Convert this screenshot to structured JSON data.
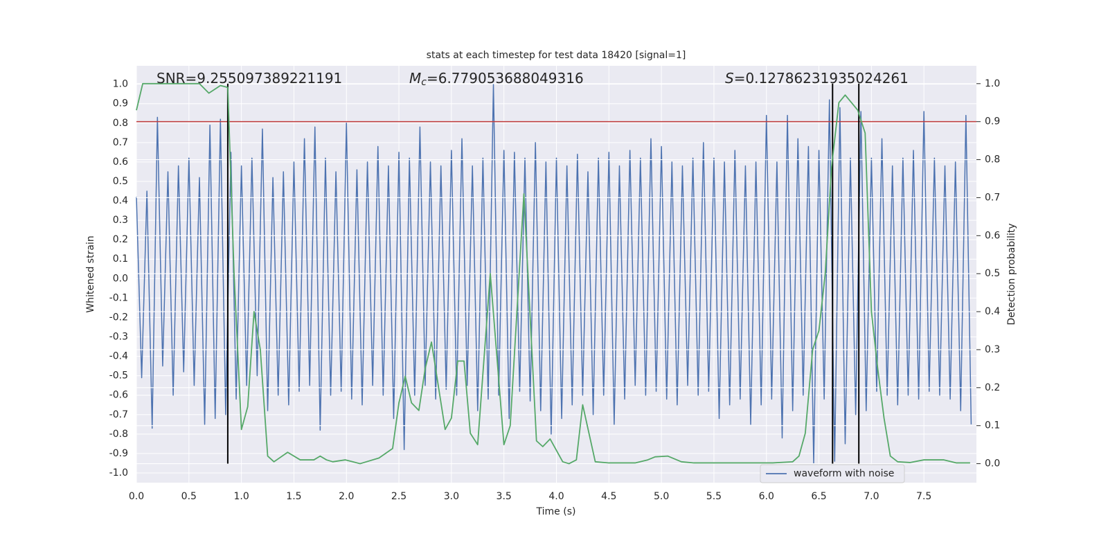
{
  "chart_data": {
    "type": "line",
    "title": "stats at each timestep for test data 18420 [signal=1]",
    "xlabel": "Time (s)",
    "ylabel": "Whitened strain",
    "y2label": "Detection probability",
    "annotations": [
      {
        "text": "SNR=9.255097389221191"
      },
      {
        "symbol": "M",
        "subscript": "c",
        "text": "=6.779053688049316"
      },
      {
        "symbol": "S",
        "text": "=0.12786231935024261"
      }
    ],
    "xlim": [
      0,
      8
    ],
    "ylim": [
      -1.05,
      1.095
    ],
    "y2lim": [
      -0.05,
      1.047
    ],
    "xticks": [
      {
        "value": 0,
        "label": "0.0"
      },
      0.5,
      {
        "value": 1,
        "label": "1.0"
      },
      1.5,
      {
        "value": 2,
        "label": "2.0"
      },
      2.5,
      {
        "value": 3,
        "label": "3.0"
      },
      3.5,
      {
        "value": 4,
        "label": "4.0"
      },
      4.5,
      {
        "value": 5,
        "label": "5.0"
      },
      5.5,
      {
        "value": 6,
        "label": "6.0"
      },
      6.5,
      {
        "value": 7,
        "label": "7.0"
      },
      7.5
    ],
    "yticks": [
      {
        "value": -1,
        "label": "-1.0"
      },
      -0.9,
      -0.8,
      -0.7,
      -0.6,
      -0.5,
      -0.4,
      -0.3,
      -0.2,
      -0.1,
      {
        "value": 0,
        "label": "0.0"
      },
      0.1,
      0.2,
      0.3,
      0.4,
      0.5,
      0.6,
      0.7,
      0.8,
      0.9,
      {
        "value": 1,
        "label": "1.0"
      }
    ],
    "y2ticks": [
      {
        "value": 0,
        "label": "0.0"
      },
      0.1,
      0.2,
      0.3,
      0.4,
      0.5,
      0.6,
      0.7,
      0.8,
      0.9,
      {
        "value": 1,
        "label": "1.0"
      }
    ],
    "grid": true,
    "legend": "lower right",
    "threshold": 0.9,
    "threshold_color": "#c03a3a",
    "vlines": [
      0.87,
      6.63,
      6.88
    ],
    "vline_span": [
      0,
      1
    ],
    "vline_color": "#000000",
    "series": [
      {
        "name": "waveform with noise",
        "color": "#4c72b0",
        "x": [
          0,
          0.05,
          0.1,
          0.15,
          0.2,
          0.25,
          0.3,
          0.35,
          0.4,
          0.45,
          0.5,
          0.55,
          0.6,
          0.65,
          0.7,
          0.75,
          0.8,
          0.85,
          0.9,
          0.95,
          1,
          1.05,
          1.1,
          1.15,
          1.2,
          1.25,
          1.3,
          1.35,
          1.4,
          1.45,
          1.5,
          1.55,
          1.6,
          1.65,
          1.7,
          1.75,
          1.8,
          1.85,
          1.9,
          1.95,
          2,
          2.05,
          2.1,
          2.15,
          2.2,
          2.25,
          2.3,
          2.35,
          2.4,
          2.45,
          2.5,
          2.55,
          2.6,
          2.65,
          2.7,
          2.75,
          2.8,
          2.85,
          2.9,
          2.95,
          3,
          3.05,
          3.1,
          3.15,
          3.2,
          3.25,
          3.3,
          3.35,
          3.4,
          3.45,
          3.5,
          3.55,
          3.6,
          3.65,
          3.7,
          3.75,
          3.8,
          3.85,
          3.9,
          3.95,
          4,
          4.05,
          4.1,
          4.15,
          4.2,
          4.25,
          4.3,
          4.35,
          4.4,
          4.45,
          4.5,
          4.55,
          4.6,
          4.65,
          4.7,
          4.75,
          4.8,
          4.85,
          4.9,
          4.95,
          5,
          5.05,
          5.1,
          5.15,
          5.2,
          5.25,
          5.3,
          5.35,
          5.4,
          5.45,
          5.5,
          5.55,
          5.6,
          5.65,
          5.7,
          5.75,
          5.8,
          5.85,
          5.9,
          5.95,
          6,
          6.05,
          6.1,
          6.15,
          6.2,
          6.25,
          6.3,
          6.35,
          6.4,
          6.45,
          6.5,
          6.55,
          6.6,
          6.65,
          6.7,
          6.75,
          6.8,
          6.85,
          6.9,
          6.95,
          7,
          7.05,
          7.1,
          7.15,
          7.2,
          7.25,
          7.3,
          7.35,
          7.4,
          7.45,
          7.5,
          7.55,
          7.6,
          7.65,
          7.7,
          7.75,
          7.8,
          7.85,
          7.9,
          7.95
        ],
        "values": [
          0.42,
          -0.51,
          0.45,
          -0.77,
          0.83,
          -0.45,
          0.55,
          -0.6,
          0.58,
          -0.48,
          0.62,
          -0.55,
          0.52,
          -0.75,
          0.79,
          -0.72,
          0.82,
          -0.7,
          0.65,
          -0.62,
          0.58,
          -0.55,
          0.62,
          -0.5,
          0.77,
          -0.68,
          0.52,
          -0.6,
          0.55,
          -0.65,
          0.6,
          -0.58,
          0.72,
          -0.55,
          0.78,
          -0.78,
          0.62,
          -0.6,
          0.55,
          -0.58,
          0.8,
          -0.62,
          0.56,
          -0.65,
          0.6,
          -0.55,
          0.68,
          -0.6,
          0.58,
          -0.72,
          0.65,
          -0.88,
          0.62,
          -0.6,
          0.78,
          -0.55,
          0.6,
          -0.62,
          0.58,
          -0.57,
          0.66,
          -0.6,
          0.72,
          -0.55,
          0.58,
          -0.68,
          0.62,
          -0.62,
          1.0,
          -0.6,
          0.66,
          -0.72,
          0.65,
          -0.58,
          0.62,
          -0.63,
          0.7,
          -0.68,
          0.6,
          -0.8,
          0.62,
          -0.72,
          0.58,
          -0.65,
          0.64,
          -0.6,
          0.55,
          -0.7,
          0.62,
          -0.6,
          0.65,
          -0.75,
          0.58,
          -0.62,
          0.66,
          -0.55,
          0.62,
          -0.6,
          0.72,
          -0.58,
          0.68,
          -0.62,
          0.6,
          -0.65,
          0.58,
          -0.55,
          0.62,
          -0.6,
          0.7,
          -0.58,
          0.62,
          -0.72,
          0.6,
          -0.65,
          0.66,
          -0.62,
          0.58,
          -0.75,
          0.6,
          -0.65,
          0.84,
          -0.62,
          0.6,
          -0.82,
          0.84,
          -0.68,
          0.72,
          -0.6,
          0.68,
          -0.95,
          0.66,
          -0.62,
          0.92,
          -0.94,
          0.88,
          -0.85,
          0.62,
          -0.7,
          0.86,
          -0.68,
          0.62,
          -0.58,
          0.72,
          -0.6,
          0.58,
          -0.65,
          0.62,
          -0.6,
          0.66,
          -0.62,
          0.86,
          -0.58,
          0.62,
          -0.6,
          0.58,
          -0.62,
          0.6,
          -0.68,
          0.84,
          -0.75
        ]
      },
      {
        "color": "#55a868",
        "axis": "y2",
        "x": [
          0,
          0.06,
          0.2,
          0.4,
          0.6,
          0.69,
          0.8,
          0.87,
          0.93,
          1,
          1.06,
          1.12,
          1.18,
          1.25,
          1.31,
          1.44,
          1.56,
          1.69,
          1.75,
          1.81,
          1.87,
          1.99,
          2.13,
          2.31,
          2.44,
          2.5,
          2.56,
          2.62,
          2.69,
          2.75,
          2.81,
          2.94,
          3,
          3.06,
          3.12,
          3.18,
          3.25,
          3.37,
          3.5,
          3.56,
          3.69,
          3.81,
          3.87,
          3.94,
          4.06,
          4.12,
          4.19,
          4.25,
          4.37,
          4.5,
          4.62,
          4.75,
          4.87,
          4.94,
          5.06,
          5.19,
          5.31,
          5.5,
          5.69,
          5.87,
          6.06,
          6.25,
          6.31,
          6.37,
          6.44,
          6.5,
          6.56,
          6.62,
          6.69,
          6.75,
          6.81,
          6.87,
          6.94,
          7,
          7.06,
          7.12,
          7.18,
          7.25,
          7.37,
          7.5,
          7.62,
          7.69,
          7.81,
          7.94
        ],
        "values": [
          0.93,
          1.0,
          1.0,
          1.0,
          1.0,
          0.975,
          0.995,
          0.99,
          0.5,
          0.09,
          0.15,
          0.4,
          0.3,
          0.02,
          0.005,
          0.03,
          0.01,
          0.01,
          0.02,
          0.01,
          0.005,
          0.01,
          0.0,
          0.015,
          0.04,
          0.16,
          0.23,
          0.16,
          0.14,
          0.25,
          0.32,
          0.09,
          0.12,
          0.27,
          0.27,
          0.08,
          0.05,
          0.5,
          0.05,
          0.1,
          0.71,
          0.06,
          0.045,
          0.065,
          0.005,
          0.0,
          0.01,
          0.155,
          0.005,
          0.002,
          0.002,
          0.002,
          0.01,
          0.018,
          0.02,
          0.005,
          0.002,
          0.002,
          0.002,
          0.002,
          0.002,
          0.005,
          0.02,
          0.08,
          0.3,
          0.35,
          0.5,
          0.78,
          0.95,
          0.97,
          0.95,
          0.93,
          0.87,
          0.4,
          0.25,
          0.12,
          0.02,
          0.005,
          0.003,
          0.01,
          0.01,
          0.01,
          0.002,
          0.002
        ]
      }
    ]
  }
}
